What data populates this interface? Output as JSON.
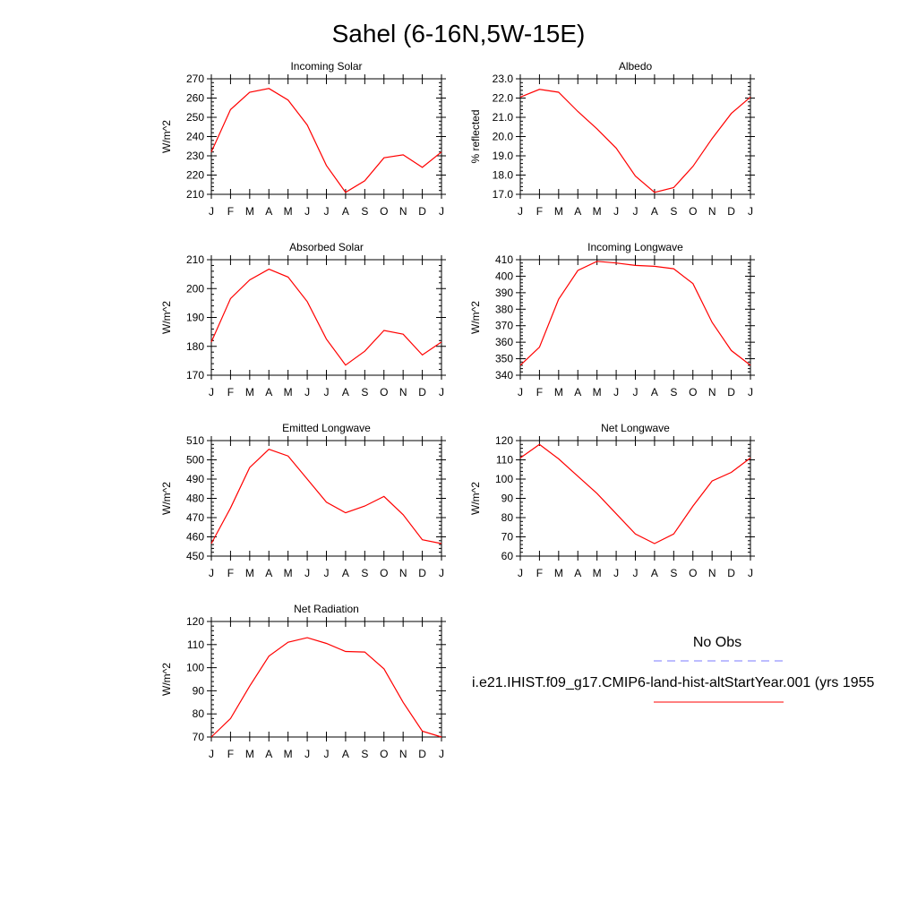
{
  "title": "Sahel (6-16N,5W-15E)",
  "months": [
    "J",
    "F",
    "M",
    "A",
    "M",
    "J",
    "J",
    "A",
    "S",
    "O",
    "N",
    "D",
    "J"
  ],
  "series_color": "#ff0000",
  "obs_color": "#7b7bff",
  "legend": {
    "obs_label": "No Obs",
    "model_label": "i.e21.IHIST.f09_g17.CMIP6-land-hist-altStartYear.001 (yrs 1955"
  },
  "chart_data": [
    {
      "type": "line",
      "title": "Incoming Solar",
      "ylabel": "W/m^2",
      "ylim": [
        210,
        270
      ],
      "yticks": [
        210,
        220,
        230,
        240,
        250,
        260,
        270
      ],
      "ytick_labels": [
        "210",
        "220",
        "230",
        "240",
        "250",
        "260",
        "270"
      ],
      "values": [
        232,
        254,
        263,
        265,
        259,
        246,
        225,
        211,
        217,
        229,
        230.5,
        224,
        232
      ]
    },
    {
      "type": "line",
      "title": "Albedo",
      "ylabel": "% reflected",
      "ylim": [
        17,
        23
      ],
      "yticks": [
        17,
        18,
        19,
        20,
        21,
        22,
        23
      ],
      "ytick_labels": [
        "17.0",
        "18.0",
        "19.0",
        "20.0",
        "21.0",
        "22.0",
        "23.0"
      ],
      "values": [
        22.05,
        22.45,
        22.3,
        21.3,
        20.4,
        19.4,
        17.95,
        17.1,
        17.35,
        18.45,
        19.9,
        21.2,
        22.05
      ]
    },
    {
      "type": "line",
      "title": "Absorbed Solar",
      "ylabel": "W/m^2",
      "ylim": [
        170,
        210
      ],
      "yticks": [
        170,
        180,
        190,
        200,
        210
      ],
      "ytick_labels": [
        "170",
        "180",
        "190",
        "200",
        "210"
      ],
      "values": [
        181.5,
        196.5,
        203,
        206.7,
        204,
        195.5,
        182.5,
        173.5,
        178.3,
        185.5,
        184.2,
        177,
        181.5
      ]
    },
    {
      "type": "line",
      "title": "Incoming Longwave",
      "ylabel": "W/m^2",
      "ylim": [
        340,
        410
      ],
      "yticks": [
        340,
        350,
        360,
        370,
        380,
        390,
        400,
        410
      ],
      "ytick_labels": [
        "340",
        "350",
        "360",
        "370",
        "380",
        "390",
        "400",
        "410"
      ],
      "values": [
        346,
        357,
        386,
        403.5,
        409,
        408,
        406.5,
        406,
        404.5,
        395.5,
        372,
        355,
        346
      ]
    },
    {
      "type": "line",
      "title": "Emitted Longwave",
      "ylabel": "W/m^2",
      "ylim": [
        450,
        510
      ],
      "yticks": [
        450,
        460,
        470,
        480,
        490,
        500,
        510
      ],
      "ytick_labels": [
        "450",
        "460",
        "470",
        "480",
        "490",
        "500",
        "510"
      ],
      "values": [
        456.5,
        475,
        496,
        505.5,
        502,
        490,
        478,
        472.5,
        476,
        481,
        471.5,
        458.5,
        456.5
      ]
    },
    {
      "type": "line",
      "title": "Net Longwave",
      "ylabel": "W/m^2",
      "ylim": [
        60,
        120
      ],
      "yticks": [
        60,
        70,
        80,
        90,
        100,
        110,
        120
      ],
      "ytick_labels": [
        "60",
        "70",
        "80",
        "90",
        "100",
        "110",
        "120"
      ],
      "values": [
        111,
        118,
        110.5,
        101.5,
        92.5,
        82,
        71.5,
        66.5,
        71.5,
        86,
        99,
        103.5,
        111
      ]
    },
    {
      "type": "line",
      "title": "Net Radiation",
      "ylabel": "W/m^2",
      "ylim": [
        70,
        120
      ],
      "yticks": [
        70,
        80,
        90,
        100,
        110,
        120
      ],
      "ytick_labels": [
        "70",
        "80",
        "90",
        "100",
        "110",
        "120"
      ],
      "values": [
        70,
        78,
        92,
        105,
        111,
        113,
        110.5,
        107,
        106.8,
        99.5,
        85,
        72.5,
        70
      ]
    }
  ]
}
